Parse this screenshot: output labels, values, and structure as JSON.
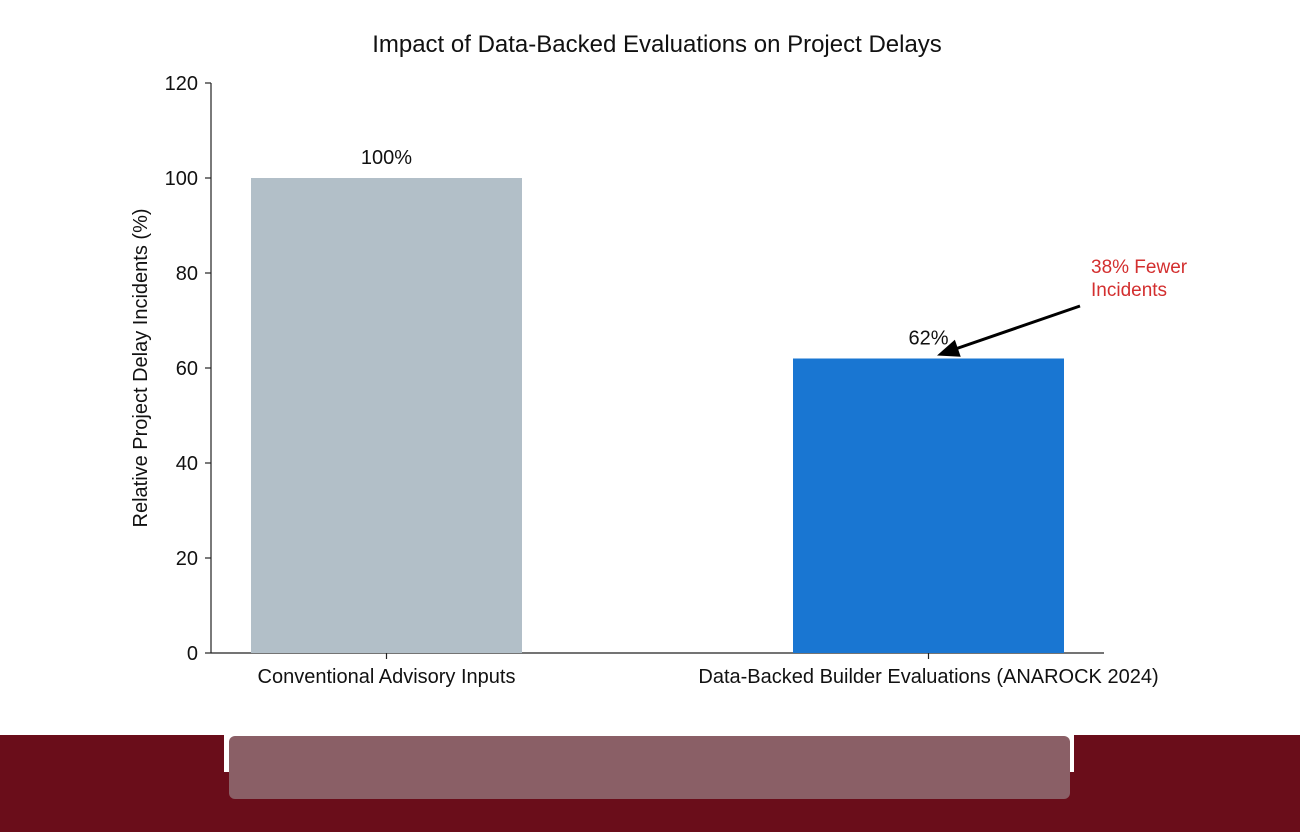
{
  "chart_data": {
    "type": "bar",
    "title": "Impact of Data-Backed Evaluations on Project Delays",
    "ylabel": "Relative Project Delay Incidents (%)",
    "xlabel": "",
    "ylim": [
      0,
      120
    ],
    "yticks": [
      0,
      20,
      40,
      60,
      80,
      100,
      120
    ],
    "categories": [
      "Conventional Advisory Inputs",
      "Data-Backed Builder Evaluations (ANAROCK 2024)"
    ],
    "values": [
      100,
      62
    ],
    "data_labels": [
      "100%",
      "62%"
    ],
    "bar_colors": [
      "#b2bfc8",
      "#1976d2"
    ],
    "annotation": {
      "lines": [
        "38% Fewer",
        "Incidents"
      ],
      "color": "#d32f2f",
      "points_to_category": 1,
      "points_to_value": 62
    },
    "grid": false,
    "legend": "none"
  },
  "footer": {
    "band_color": "#6a0d1a",
    "panel_color": "#8a5f66"
  }
}
